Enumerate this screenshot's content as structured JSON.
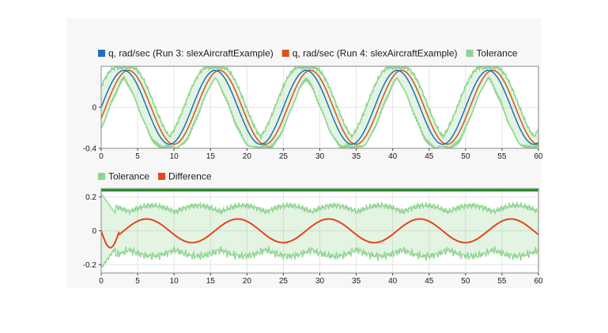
{
  "chart_data": [
    {
      "type": "line",
      "xlim": [
        0,
        60
      ],
      "ylim": [
        -0.4,
        0.4
      ],
      "x_ticks": [
        "0",
        "5",
        "10",
        "15",
        "20",
        "25",
        "30",
        "35",
        "40",
        "45",
        "50",
        "55",
        "60"
      ],
      "y_ticks": [
        "0",
        "-0.4"
      ],
      "grid": true,
      "legend_position": "top-left",
      "series": [
        {
          "name": "q, rad/sec (Run 3: slexAircraftExample)",
          "color": "#1f6fbf",
          "amplitude": 0.36,
          "period": 12.5,
          "phase": 0
        },
        {
          "name": "q, rad/sec (Run 4: slexAircraftExample)",
          "color": "#d95319",
          "amplitude": 0.36,
          "period": 12.5,
          "phase": 0.6
        },
        {
          "name": "Tolerance",
          "color": "#8fd38f",
          "band_width": 0.2
        }
      ]
    },
    {
      "type": "line",
      "xlim": [
        0,
        60
      ],
      "ylim": [
        -0.25,
        0.25
      ],
      "x_ticks": [
        "0",
        "5",
        "10",
        "15",
        "20",
        "25",
        "30",
        "35",
        "40",
        "45",
        "50",
        "55",
        "60"
      ],
      "y_ticks": [
        "0.2",
        "0",
        "-0.2"
      ],
      "grid": true,
      "legend_position": "top-left",
      "series": [
        {
          "name": "Tolerance",
          "color": "#8fd38f",
          "amplitude": 0.15,
          "period": 12.5
        },
        {
          "name": "Difference",
          "color": "#e8431a",
          "amplitude": 0.07,
          "period": 12.5
        },
        {
          "name": "",
          "color": "#1e8a1e",
          "value": 0.24
        }
      ]
    }
  ]
}
